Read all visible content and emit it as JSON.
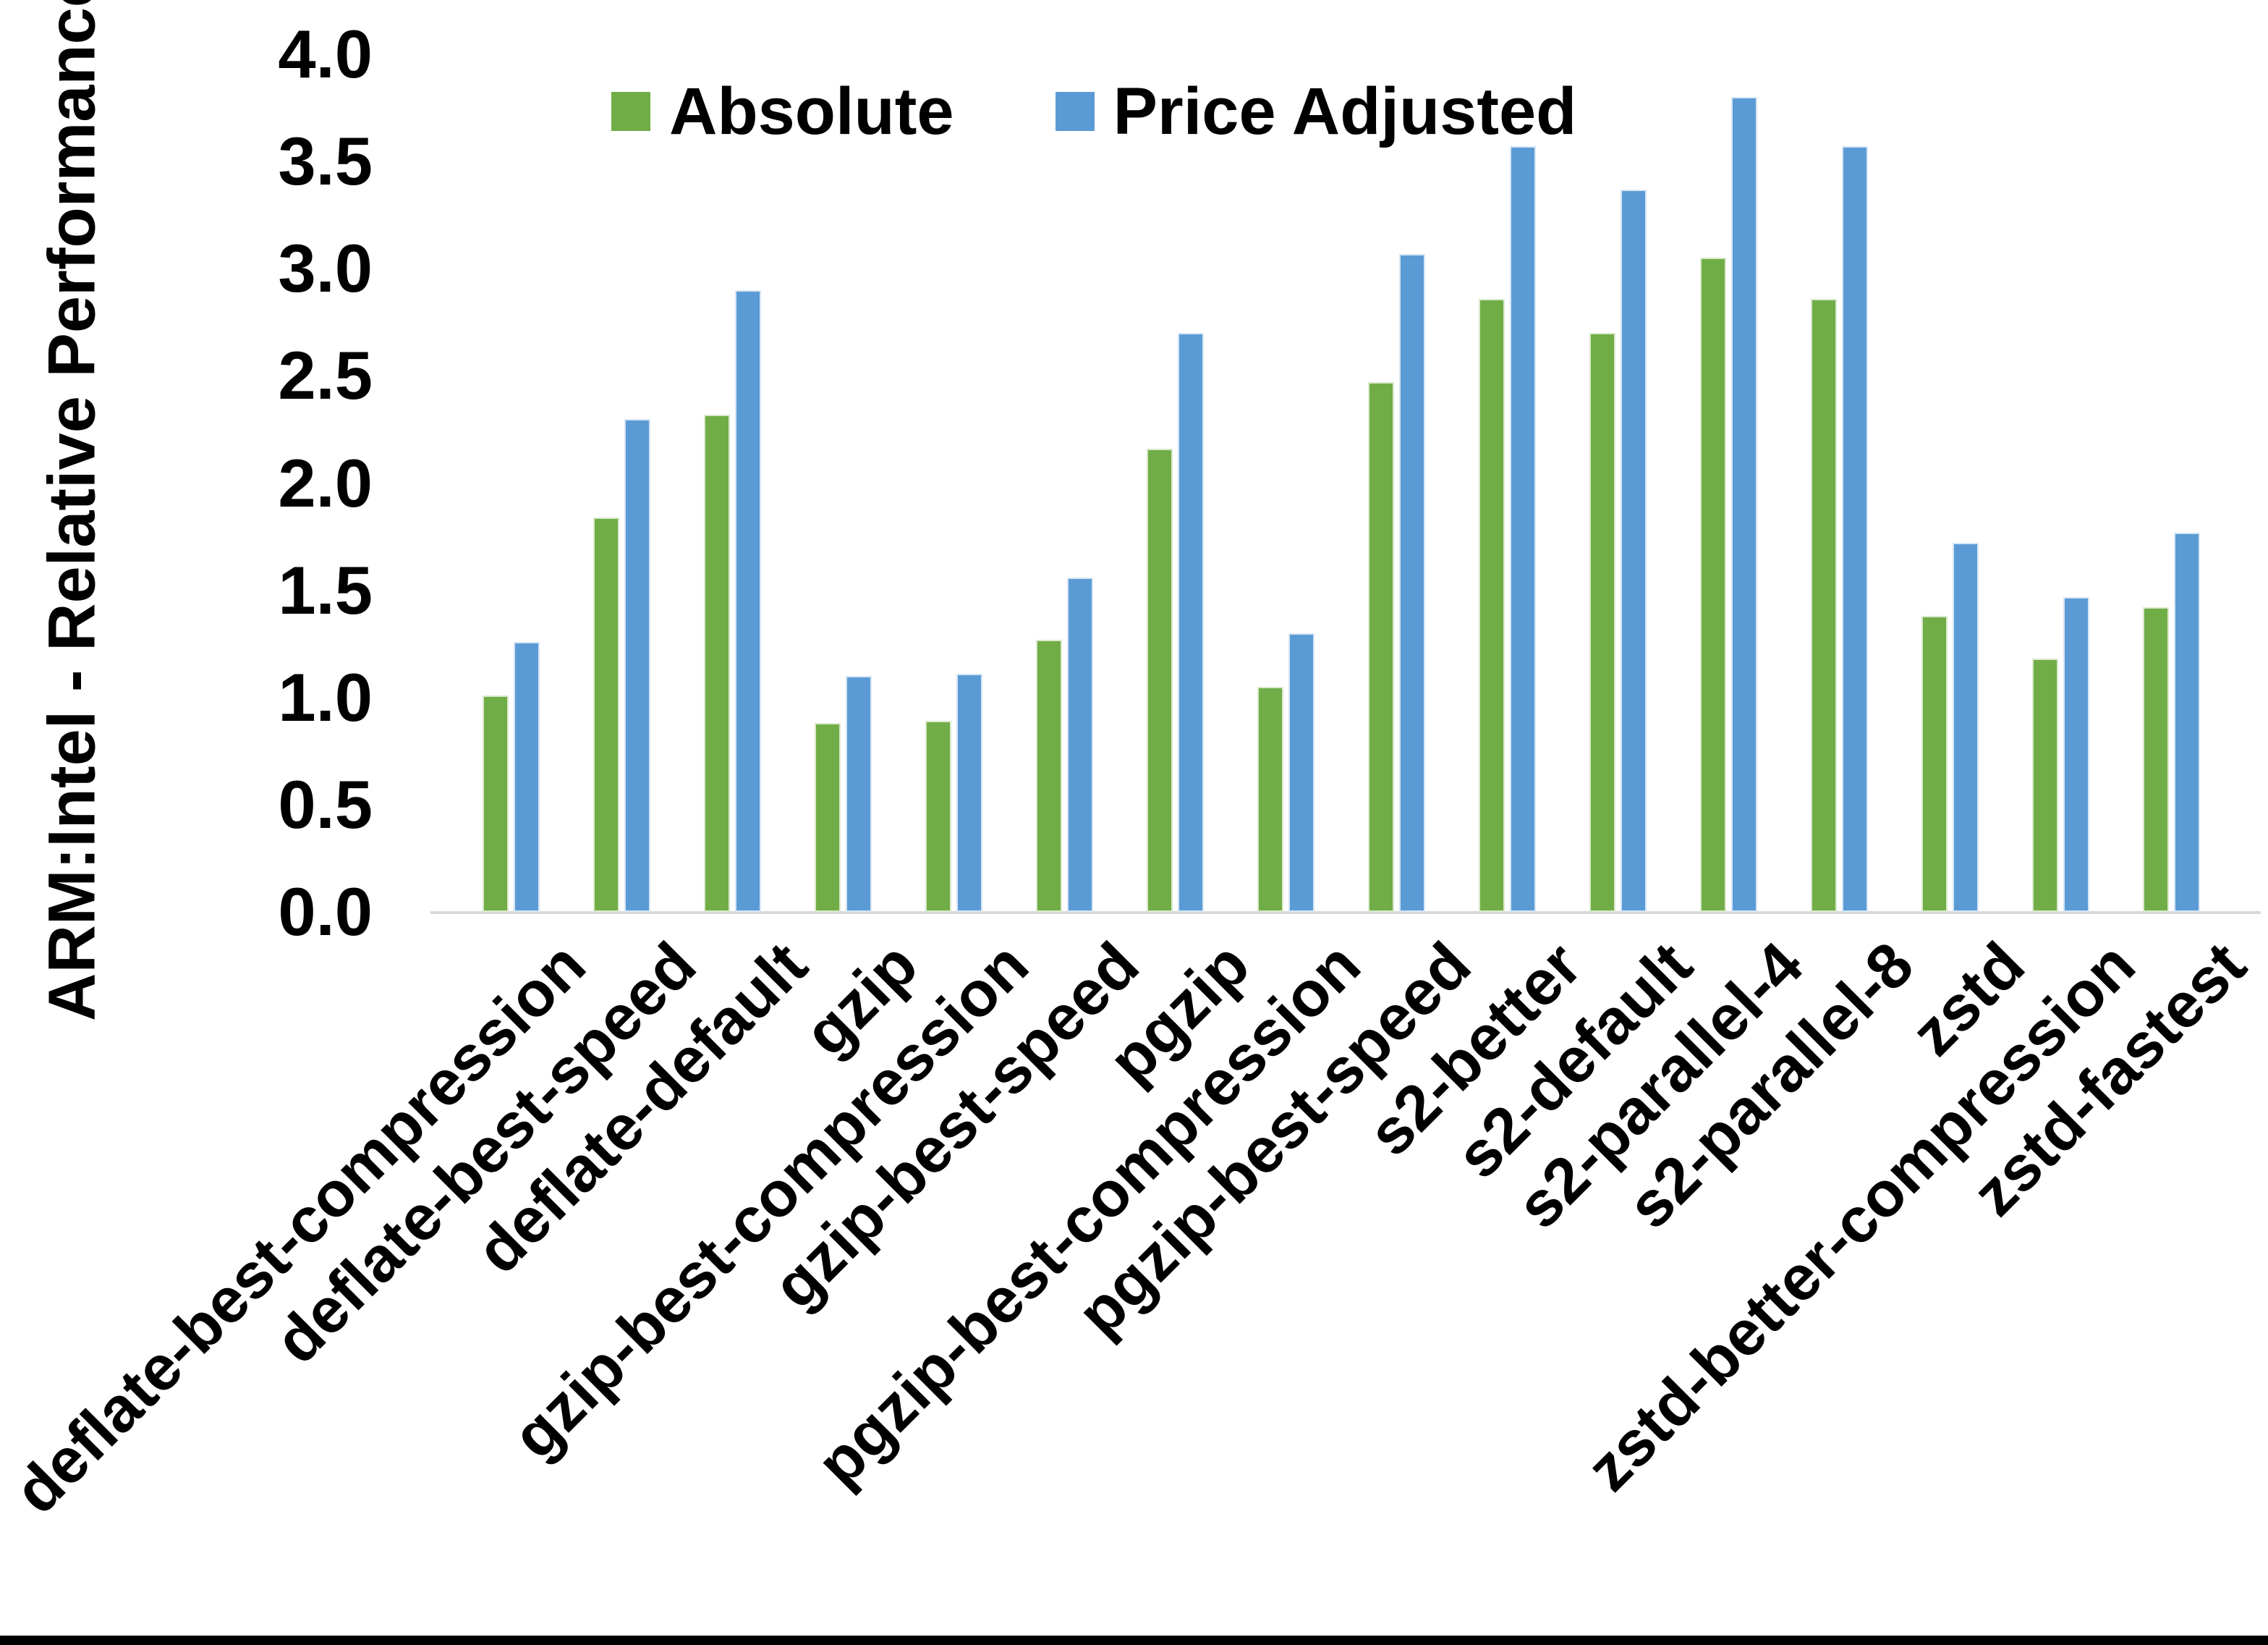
{
  "chart_data": {
    "type": "bar",
    "title": "",
    "ylabel": "ARM:Intel - Relative Performance",
    "xlabel": "",
    "ylim": [
      0.0,
      4.0
    ],
    "ytick_step": 0.5,
    "yticks": [
      "0.0",
      "0.5",
      "1.0",
      "1.5",
      "2.0",
      "2.5",
      "3.0",
      "3.5",
      "4.0"
    ],
    "grid": false,
    "legend_position": "top-center",
    "categories": [
      "deflate-best-compression",
      "deflate-best-speed",
      "deflate-default",
      "gzip",
      "gzip-best-compression",
      "gzip-best-speed",
      "pgzip",
      "pgzip-best-compression",
      "pgzip-best-speed",
      "s2-better",
      "s2-default",
      "s2-parallel-4",
      "s2-parallel-8",
      "zstd",
      "zstd-better-compression",
      "zstd-fastest"
    ],
    "series": [
      {
        "name": "Absolute",
        "color": "#70AD47",
        "values": [
          1.01,
          1.84,
          2.32,
          0.88,
          0.89,
          1.27,
          2.16,
          1.05,
          2.47,
          2.86,
          2.7,
          3.05,
          2.86,
          1.38,
          1.18,
          1.42
        ]
      },
      {
        "name": "Price Adjusted",
        "color": "#5B9BD5",
        "values": [
          1.26,
          2.3,
          2.9,
          1.1,
          1.11,
          1.56,
          2.7,
          1.3,
          3.07,
          3.57,
          3.37,
          3.8,
          3.57,
          1.72,
          1.47,
          1.77
        ]
      }
    ],
    "colors": {
      "axis_line": "#d9d9d9",
      "text": "#000000",
      "background": "#ffffff"
    }
  }
}
